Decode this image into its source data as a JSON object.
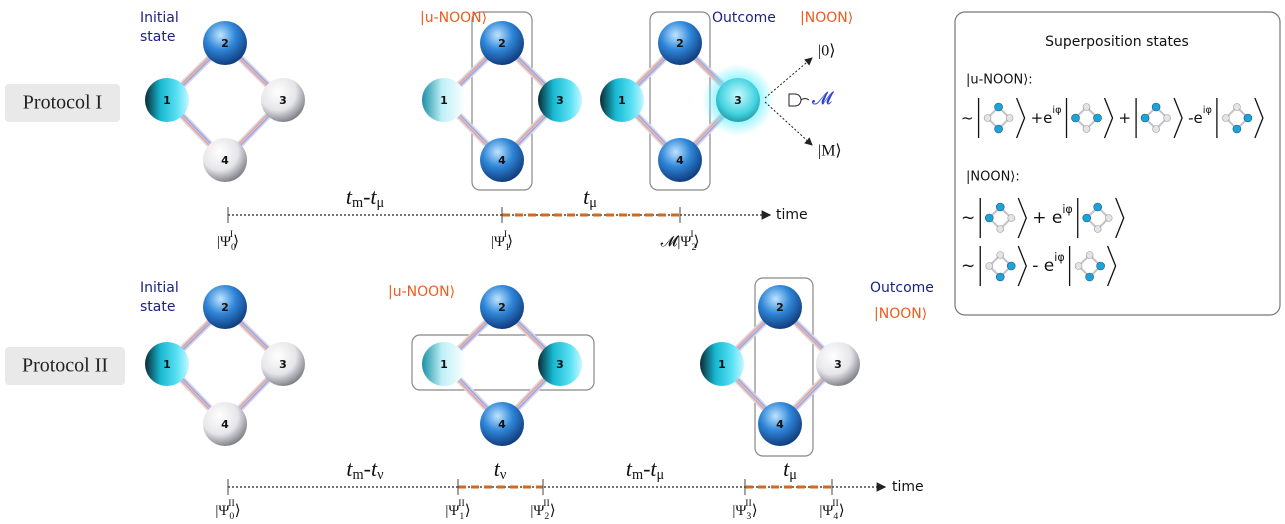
{
  "protocols": [
    {
      "label": "Protocol I",
      "initial_label": [
        "Initial",
        "state"
      ],
      "unoon_label": "|u-NOON⟩",
      "outcome_label": "Outcome",
      "noon_label": "|NOON⟩",
      "diagrams": [
        {
          "nodes": [
            "1",
            "2",
            "3",
            "4"
          ]
        },
        {
          "nodes": [
            "1",
            "2",
            "3",
            "4"
          ]
        },
        {
          "nodes": [
            "1",
            "2",
            "3",
            "4"
          ]
        }
      ],
      "measurement": {
        "upper": "|0⟩",
        "lower": "|M⟩",
        "detector": "𝓜"
      },
      "timeline": {
        "intervals": [
          [
            {
              "text": "t",
              "sub": "m"
            },
            {
              "text": "-"
            },
            {
              "text": "t",
              "sub": "μ"
            }
          ],
          [
            {
              "text": "t",
              "sub": "μ"
            }
          ]
        ],
        "states": [
          [
            {
              "text": "|Ψ",
              "sub": "0",
              "sup": "I"
            },
            {
              "text": "⟩"
            }
          ],
          [
            {
              "text": "|Ψ",
              "sub": "1",
              "sup": "I"
            },
            {
              "text": "⟩"
            }
          ],
          [
            {
              "text": "𝓜|Ψ",
              "sub": "2",
              "sup": "I"
            },
            {
              "text": "⟩"
            }
          ]
        ],
        "axis_label": "time"
      }
    },
    {
      "label": "Protocol II",
      "initial_label": [
        "Initial",
        "state"
      ],
      "unoon_label": "|u-NOON⟩",
      "outcome_label": "Outcome",
      "noon_label": "|NOON⟩",
      "diagrams": [
        {
          "nodes": [
            "1",
            "2",
            "3",
            "4"
          ]
        },
        {
          "nodes": [
            "1",
            "2",
            "3",
            "4"
          ]
        },
        {
          "nodes": [
            "1",
            "2",
            "3",
            "4"
          ]
        }
      ],
      "timeline": {
        "intervals": [
          [
            {
              "text": "t",
              "sub": "m"
            },
            {
              "text": "-"
            },
            {
              "text": "t",
              "sub": "ν"
            }
          ],
          [
            {
              "text": "t",
              "sub": "ν"
            }
          ],
          [
            {
              "text": "t",
              "sub": "m"
            },
            {
              "text": "-"
            },
            {
              "text": "t",
              "sub": "μ"
            }
          ],
          [
            {
              "text": "t",
              "sub": "μ"
            }
          ]
        ],
        "states": [
          [
            {
              "text": "|Ψ",
              "sub": "0",
              "sup": "II"
            },
            {
              "text": "⟩"
            }
          ],
          [
            {
              "text": "|Ψ",
              "sub": "1",
              "sup": "II"
            },
            {
              "text": "⟩"
            }
          ],
          [
            {
              "text": "|Ψ",
              "sub": "2",
              "sup": "II"
            },
            {
              "text": "⟩"
            }
          ],
          [
            {
              "text": "|Ψ",
              "sub": "3",
              "sup": "II"
            },
            {
              "text": "⟩"
            }
          ],
          [
            {
              "text": "|Ψ",
              "sub": "4",
              "sup": "II"
            },
            {
              "text": "⟩"
            }
          ]
        ],
        "axis_label": "time"
      }
    }
  ],
  "superposition": {
    "title": "Superposition states",
    "unoon_label": "|u-NOON⟩:",
    "unoon_rows": [
      [
        [
          {
            "text": "~"
          }
        ],
        [
          {
            "text": "+e",
            "sup": "iφ"
          }
        ],
        [
          {
            "text": "+"
          }
        ],
        [
          {
            "text": "-e",
            "sup": "iφ"
          }
        ]
      ]
    ],
    "noon_label": "|NOON⟩:",
    "noon_rows": [
      [
        [
          {
            "text": "~"
          }
        ],
        [
          {
            "text": "+ e",
            "sup": "iφ"
          }
        ]
      ],
      [
        [
          {
            "text": "~"
          }
        ],
        [
          {
            "text": "- e",
            "sup": "iφ"
          }
        ]
      ]
    ]
  }
}
